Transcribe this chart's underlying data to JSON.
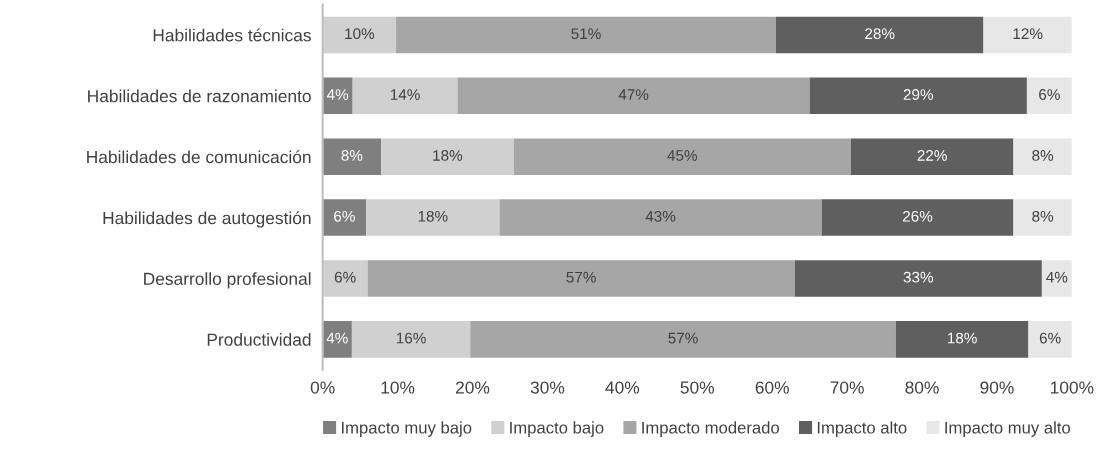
{
  "chart_data": {
    "type": "bar",
    "orientation": "horizontal",
    "stacked": true,
    "grid": false,
    "legend": "bottom",
    "categories": [
      "Habilidades técnicas",
      "Habilidades de razonamiento",
      "Habilidades de comunicación",
      "Habilidades de autogestión",
      "Desarrollo profesional",
      "Productividad"
    ],
    "series": [
      {
        "name": "Impacto muy bajo",
        "color": "#7f7f7f",
        "values": [
          null,
          4,
          7.8,
          5.8,
          null,
          3.9
        ],
        "value_labels": [
          null,
          "4%",
          "8%",
          "6%",
          null,
          "4%"
        ]
      },
      {
        "name": "Impacto bajo",
        "color": "#d0d0d0",
        "values": [
          9.8,
          14,
          17.7,
          17.8,
          6,
          15.8
        ],
        "value_labels": [
          "10%",
          "14%",
          "18%",
          "18%",
          "6%",
          "16%"
        ]
      },
      {
        "name": "Impacto moderado",
        "color": "#a6a6a6",
        "values": [
          50.7,
          47,
          45,
          43,
          57,
          56.8
        ],
        "value_labels": [
          "51%",
          "47%",
          "45%",
          "43%",
          "57%",
          "57%"
        ]
      },
      {
        "name": "Impacto alto",
        "color": "#5f5f5f",
        "values": [
          27.7,
          29,
          21.7,
          25.6,
          33,
          17.7
        ],
        "value_labels": [
          "28%",
          "29%",
          "22%",
          "26%",
          "33%",
          "18%"
        ]
      },
      {
        "name": "Impacto muy alto",
        "color": "#e7e7e7",
        "values": [
          11.8,
          6,
          7.8,
          7.8,
          4,
          5.8
        ],
        "value_labels": [
          "12%",
          "6%",
          "8%",
          "8%",
          "4%",
          "6%"
        ]
      }
    ],
    "xlim": [
      0,
      100
    ],
    "xticks": [
      {
        "value": 0,
        "label": "0%"
      },
      {
        "value": 10,
        "label": "10%"
      },
      {
        "value": 20,
        "label": "20%"
      },
      {
        "value": 30,
        "label": "30%"
      },
      {
        "value": 40,
        "label": "40%"
      },
      {
        "value": 50,
        "label": "50%"
      },
      {
        "value": 60,
        "label": "60%"
      },
      {
        "value": 70,
        "label": "70%"
      },
      {
        "value": 80,
        "label": "80%"
      },
      {
        "value": 90,
        "label": "90%"
      },
      {
        "value": 100,
        "label": "100%"
      }
    ]
  }
}
